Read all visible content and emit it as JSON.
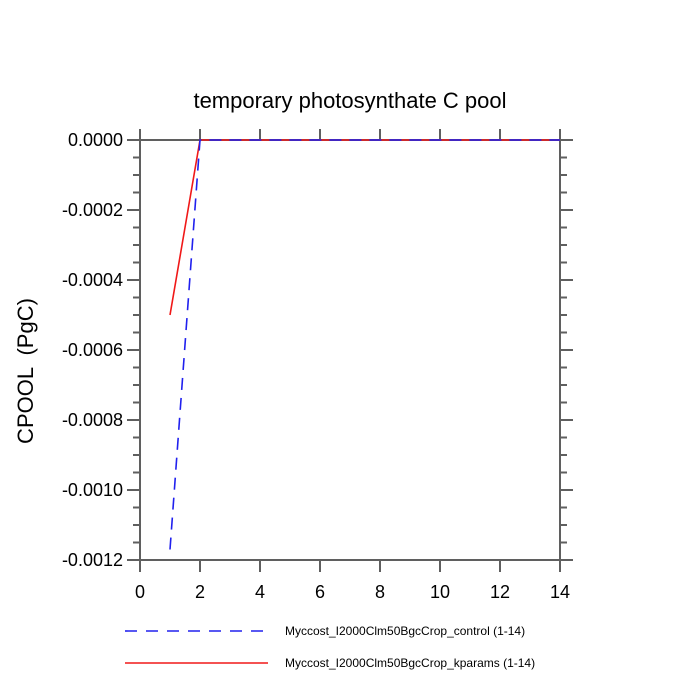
{
  "title": "temporary photosynthate C pool",
  "colors": {
    "frame": "#5f5f5f",
    "text": "#000000",
    "control_line": "#2020ee",
    "kparams_line": "#f01818"
  },
  "chart_data": {
    "type": "line",
    "title": "temporary photosynthate C pool",
    "xlabel": "",
    "ylabel": "CPOOL  (PgC)",
    "xlim": [
      0,
      14
    ],
    "ylim": [
      -0.0012,
      0
    ],
    "xticks": [
      0,
      2,
      4,
      6,
      8,
      10,
      12,
      14
    ],
    "xtick_labels": [
      "0",
      "2",
      "4",
      "6",
      "8",
      "10",
      "12",
      "14"
    ],
    "yticks": [
      0,
      -0.0002,
      -0.0004,
      -0.0006,
      -0.0008,
      -0.001,
      -0.0012
    ],
    "ytick_labels": [
      "0.0000",
      "-0.0002",
      "-0.0004",
      "-0.0006",
      "-0.0008",
      "-0.0010",
      "-0.0012"
    ],
    "y_minor_step": 5e-05,
    "grid": false,
    "legend_position": "bottom",
    "series": [
      {
        "name": "Myccost_I2000Clm50BgcCrop_control (1-14)",
        "color": "#2020ee",
        "style": "dashed",
        "x": [
          1,
          2,
          3,
          4,
          5,
          6,
          7,
          8,
          9,
          10,
          11,
          12,
          13,
          14
        ],
        "y": [
          -0.00117,
          0,
          0,
          0,
          0,
          0,
          0,
          0,
          0,
          0,
          0,
          0,
          0,
          0
        ]
      },
      {
        "name": "Myccost_I2000Clm50BgcCrop_kparams (1-14)",
        "color": "#f01818",
        "style": "solid",
        "x": [
          1,
          2,
          3,
          4,
          5,
          6,
          7,
          8,
          9,
          10,
          11,
          12,
          13,
          14
        ],
        "y": [
          -0.0005,
          0,
          0,
          0,
          0,
          0,
          0,
          0,
          0,
          0,
          0,
          0,
          0,
          0
        ]
      }
    ]
  }
}
